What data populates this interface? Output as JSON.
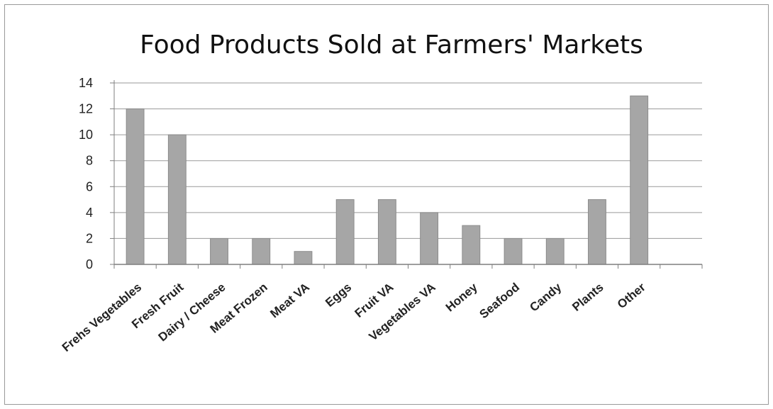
{
  "chart_data": {
    "type": "bar",
    "title": "Food Products Sold at Farmers' Markets",
    "xlabel": "",
    "ylabel": "",
    "ylim": [
      0,
      14
    ],
    "yticks": [
      0,
      2,
      4,
      6,
      8,
      10,
      12,
      14
    ],
    "categories": [
      "Frehs Vegetables",
      "Fresh Fruit",
      "Dairy / Cheese",
      "Meat Frozen",
      "Meat VA",
      "Eggs",
      "Fruit VA",
      "Vegetables VA",
      "Honey",
      "Seafood",
      "Candy",
      "Plants",
      "Other",
      ""
    ],
    "values": [
      12,
      10,
      2,
      2,
      1,
      5,
      5,
      4,
      3,
      2,
      2,
      5,
      13,
      null
    ],
    "grid": true,
    "legend": "none",
    "bar_color": "#a6a6a6",
    "bar_edge_color": "#8c8c8c",
    "grid_color": "#9a9a9a"
  }
}
